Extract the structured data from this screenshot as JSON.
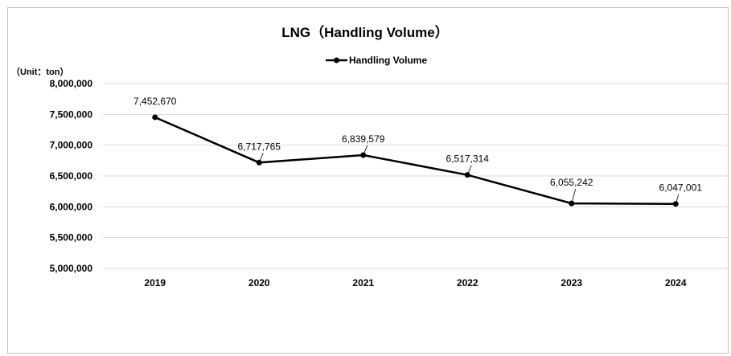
{
  "chart_data": {
    "type": "line",
    "title": "LNG（Handling Volume）",
    "unit_label": "（Unit：ton）",
    "categories": [
      "2019",
      "2020",
      "2021",
      "2022",
      "2023",
      "2024"
    ],
    "series": [
      {
        "name": "Handling Volume",
        "values": [
          7452670,
          6717765,
          6839579,
          6517314,
          6055242,
          6047001
        ],
        "labels": [
          "7,452,670",
          "6,717,765",
          "6,839,579",
          "6,517,314",
          "6,055,242",
          "6,047,001"
        ],
        "color": "#000000"
      }
    ],
    "y_ticks": [
      "8,000,000",
      "7,500,000",
      "7,000,000",
      "6,500,000",
      "6,000,000",
      "5,500,000",
      "5,000,000"
    ],
    "ylim": [
      5000000,
      8000000
    ],
    "grid": true,
    "legend_position": "top"
  }
}
